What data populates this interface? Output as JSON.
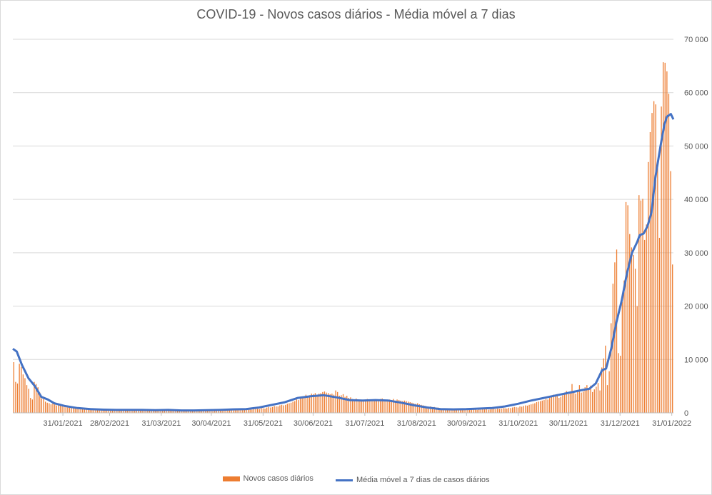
{
  "chart_data": {
    "type": "bar",
    "title": "COVID-19 - Novos casos diários - Média móvel a 7 dias",
    "xlabel": "",
    "ylabel": "",
    "ylim": [
      0,
      70000
    ],
    "yticks": [
      0,
      10000,
      20000,
      30000,
      40000,
      50000,
      60000,
      70000
    ],
    "ytick_labels": [
      "0",
      "10 000",
      "20 000",
      "30 000",
      "40 000",
      "50 000",
      "60 000",
      "70 000"
    ],
    "y_axis_side": "right",
    "grid": true,
    "legend_position": "bottom",
    "x_tick_labels": [
      "31/01/2021",
      "28/02/2021",
      "31/03/2021",
      "30/04/2021",
      "31/05/2021",
      "30/06/2021",
      "31/07/2021",
      "31/08/2021",
      "30/09/2021",
      "31/10/2021",
      "30/11/2021",
      "31/12/2021",
      "31/01/2022"
    ],
    "x_start": "01/01/2021",
    "x_end": "31/01/2022",
    "series": [
      {
        "name": "Novos casos diários",
        "kind": "bar",
        "color": "#ED7D31",
        "values": [
          9500,
          5800,
          5500,
          9200,
          8600,
          7200,
          6500,
          5200,
          4500,
          2800,
          2500,
          5800,
          5400,
          4800,
          3800,
          2700,
          2600,
          2100,
          1900,
          1800,
          1600,
          1900,
          1600,
          1400,
          1600,
          1400,
          1200,
          1300,
          1100,
          1000,
          1200,
          1000,
          900,
          1100,
          950,
          900,
          800,
          1000,
          800,
          700,
          750,
          700,
          650,
          700,
          600,
          650,
          600,
          600,
          550,
          650,
          600,
          500,
          550,
          600,
          500,
          450,
          500,
          500,
          450,
          500,
          450,
          550,
          400,
          500,
          450,
          500,
          600,
          450,
          500,
          550,
          650,
          550,
          500,
          600,
          550,
          450,
          400,
          500,
          600,
          500,
          600,
          500,
          450,
          500,
          550,
          450,
          400,
          450,
          500,
          400,
          350,
          400,
          350,
          400,
          400,
          350,
          350,
          300,
          400,
          350,
          300,
          350,
          400,
          300,
          350,
          400,
          350,
          300,
          350,
          400,
          450,
          400,
          350,
          400,
          450,
          500,
          550,
          500,
          450,
          500,
          550,
          600,
          650,
          600,
          550,
          600,
          700,
          650,
          600,
          700,
          800,
          750,
          700,
          900,
          850,
          800,
          1000,
          1100,
          1000,
          1100,
          1300,
          1200,
          1200,
          1400,
          1500,
          1400,
          1500,
          1700,
          1800,
          1900,
          2100,
          2200,
          2500,
          2400,
          2700,
          2900,
          2800,
          3400,
          3100,
          3300,
          3600,
          3500,
          3700,
          3300,
          3600,
          3700,
          3900,
          4000,
          3800,
          3700,
          3500,
          3600,
          3400,
          4200,
          3900,
          3200,
          3300,
          3500,
          3000,
          3200,
          2800,
          2900,
          2600,
          2500,
          2700,
          2400,
          2200,
          2300,
          2400,
          2500,
          2600,
          2500,
          2400,
          2300,
          2200,
          2400,
          2500,
          2600,
          2700,
          2500,
          2400,
          2300,
          2500,
          2400,
          2600,
          2300,
          2500,
          2400,
          2300,
          2200,
          2300,
          2200,
          2100,
          2000,
          1900,
          1800,
          1700,
          1800,
          1600,
          1500,
          1400,
          1300,
          1200,
          1100,
          1200,
          1000,
          1100,
          900,
          1000,
          900,
          800,
          850,
          750,
          800,
          700,
          750,
          700,
          650,
          700,
          750,
          700,
          650,
          600,
          700,
          650,
          600,
          650,
          700,
          600,
          550,
          650,
          600,
          700,
          650,
          700,
          600,
          650,
          700,
          750,
          700,
          800,
          750,
          800,
          900,
          850,
          800,
          950,
          900,
          1000,
          1100,
          1050,
          1000,
          1200,
          1150,
          1300,
          1400,
          1350,
          1500,
          1600,
          1700,
          1800,
          2000,
          2100,
          2200,
          2300,
          2400,
          2600,
          2500,
          2800,
          3100,
          3400,
          3200,
          3500,
          2800,
          3000,
          3300,
          3800,
          4100,
          3500,
          3700,
          5400,
          3900,
          3600,
          4200,
          5200,
          3800,
          4000,
          4800,
          5200,
          4500,
          5100,
          3900,
          4400,
          4900,
          5600,
          4200,
          8500,
          10200,
          12600,
          5200,
          7800,
          16800,
          24200,
          28200,
          30600,
          11200,
          10700,
          20800,
          24800,
          39500,
          38900,
          33500,
          31000,
          29600,
          27000,
          20000,
          40800,
          39800,
          40100,
          32400,
          35300,
          47000,
          52600,
          56200,
          58400,
          57800,
          46000,
          32800,
          57400,
          65700,
          65600,
          64000,
          59800,
          45300,
          27800
        ]
      },
      {
        "name": "Média móvel a 7 dias de casos diários",
        "kind": "line",
        "color": "#4472C4",
        "points": [
          [
            0,
            12000
          ],
          [
            3,
            11500
          ],
          [
            7,
            9000
          ],
          [
            12,
            6500
          ],
          [
            17,
            5000
          ],
          [
            22,
            3000
          ],
          [
            27,
            2500
          ],
          [
            32,
            1800
          ],
          [
            40,
            1300
          ],
          [
            50,
            900
          ],
          [
            60,
            700
          ],
          [
            70,
            600
          ],
          [
            80,
            550
          ],
          [
            90,
            550
          ],
          [
            100,
            550
          ],
          [
            110,
            500
          ],
          [
            120,
            550
          ],
          [
            130,
            450
          ],
          [
            140,
            450
          ],
          [
            150,
            500
          ],
          [
            160,
            550
          ],
          [
            170,
            650
          ],
          [
            180,
            700
          ],
          [
            190,
            1000
          ],
          [
            200,
            1500
          ],
          [
            210,
            2000
          ],
          [
            220,
            2800
          ],
          [
            230,
            3100
          ],
          [
            240,
            3300
          ],
          [
            250,
            2900
          ],
          [
            260,
            2400
          ],
          [
            270,
            2300
          ],
          [
            280,
            2400
          ],
          [
            290,
            2300
          ],
          [
            300,
            1900
          ],
          [
            310,
            1400
          ],
          [
            320,
            1000
          ],
          [
            330,
            700
          ],
          [
            340,
            650
          ],
          [
            350,
            700
          ],
          [
            360,
            800
          ],
          [
            370,
            900
          ],
          [
            380,
            1200
          ],
          [
            390,
            1700
          ],
          [
            400,
            2300
          ],
          [
            410,
            2800
          ],
          [
            420,
            3300
          ],
          [
            430,
            3800
          ],
          [
            440,
            4300
          ],
          [
            445,
            4500
          ],
          [
            450,
            5500
          ],
          [
            452,
            6500
          ],
          [
            455,
            8000
          ],
          [
            458,
            8300
          ],
          [
            462,
            12000
          ],
          [
            466,
            17000
          ],
          [
            470,
            21000
          ],
          [
            474,
            26000
          ],
          [
            478,
            30000
          ],
          [
            482,
            32000
          ],
          [
            484,
            33300
          ],
          [
            487,
            33600
          ],
          [
            490,
            35000
          ],
          [
            493,
            37500
          ],
          [
            496,
            44000
          ],
          [
            500,
            50000
          ],
          [
            503,
            54000
          ],
          [
            505,
            55500
          ],
          [
            508,
            56000
          ],
          [
            510,
            55000
          ]
        ]
      }
    ]
  }
}
